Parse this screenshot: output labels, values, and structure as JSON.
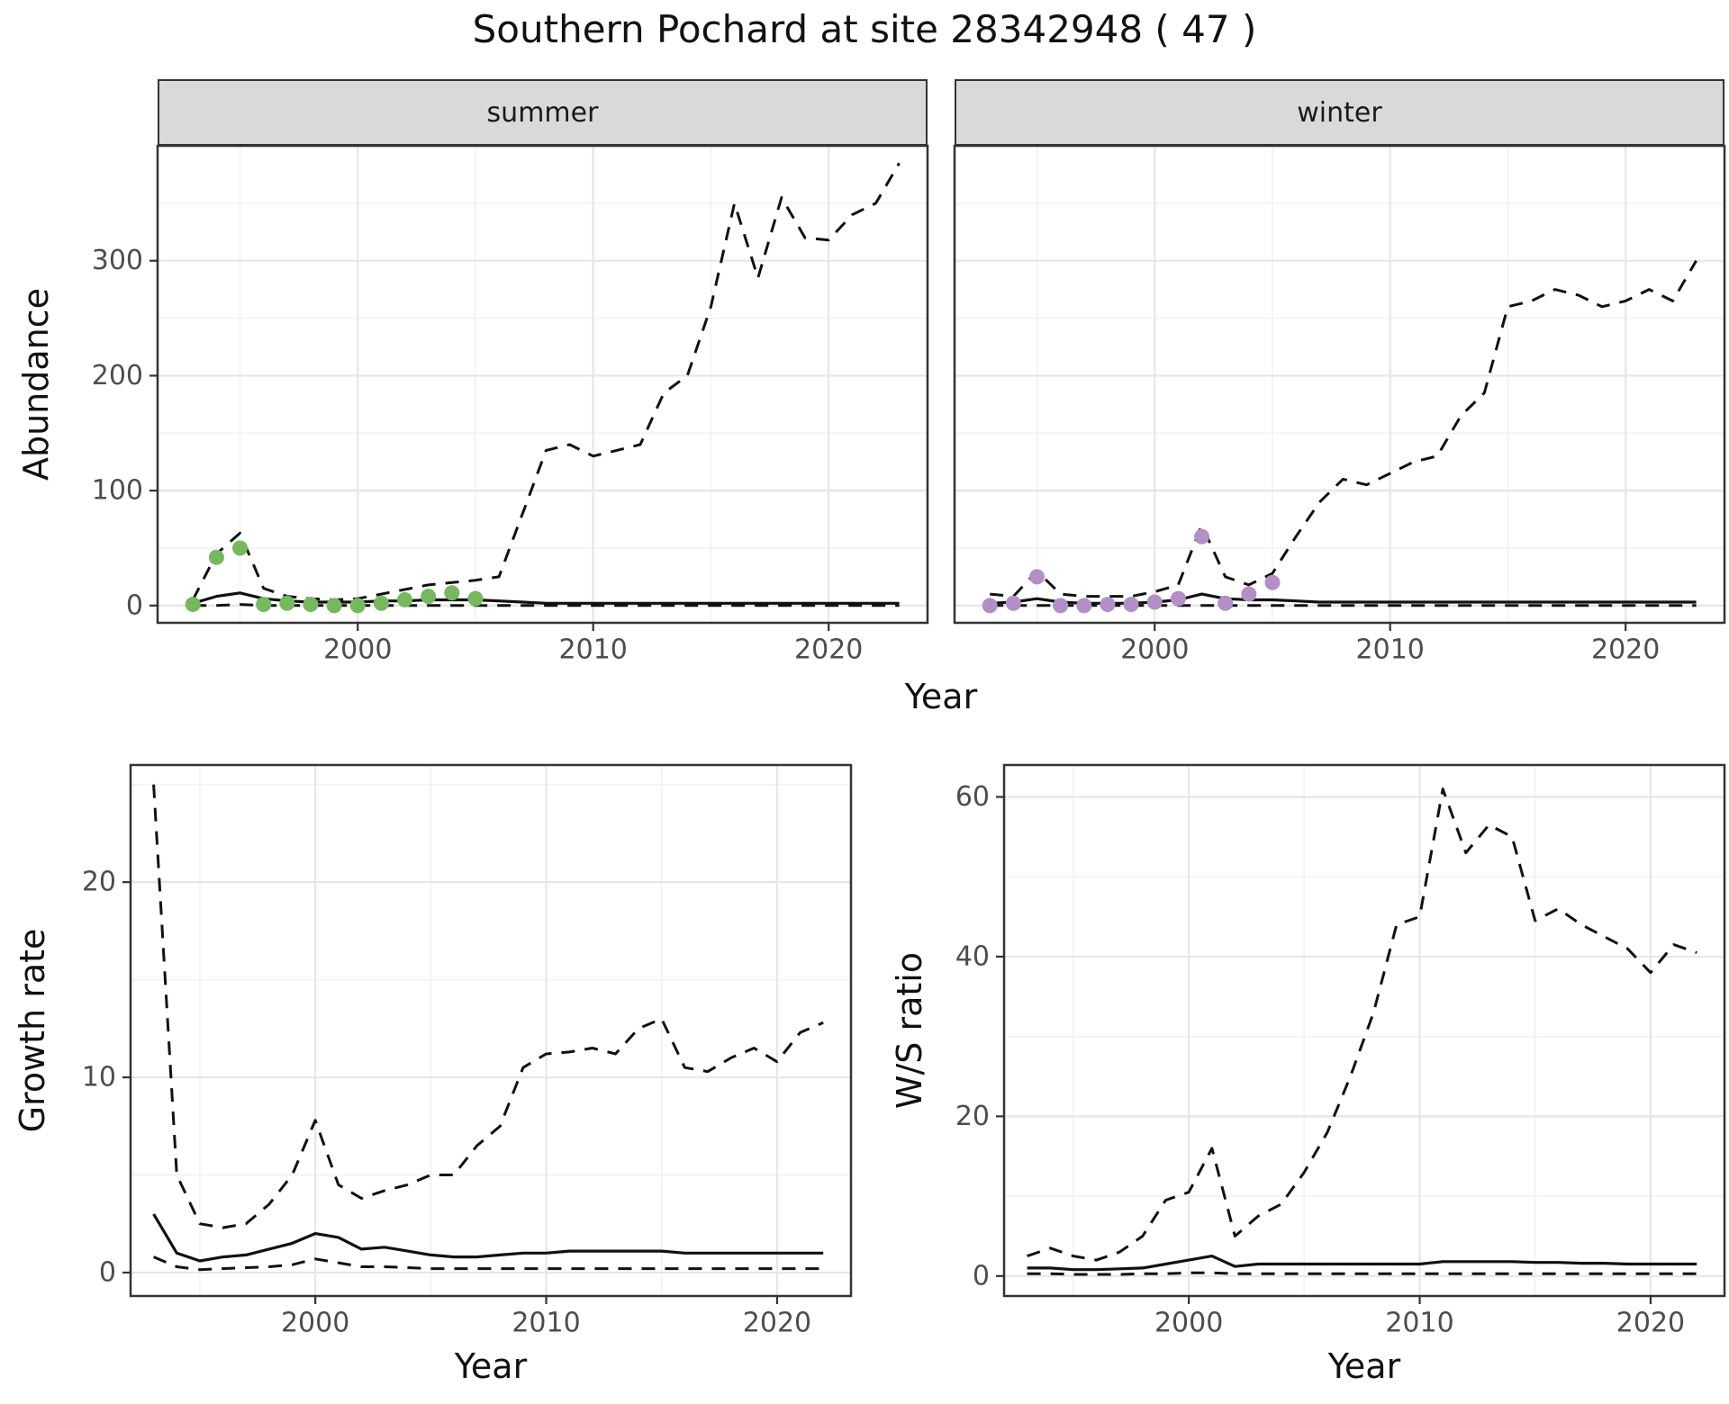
{
  "title": "Southern Pochard at site 28342948 ( 47 )",
  "colors": {
    "summer_points": "#76b85e",
    "winter_points": "#b28fc7",
    "line": "#111111",
    "grid_major": "#e6e6e6",
    "grid_minor": "#f2f2f2",
    "panel_border": "#333333",
    "strip_bg": "#d9d9d9",
    "axis_text": "#4d4d4d"
  },
  "chart_data": [
    {
      "id": "abundance-summer",
      "type": "line",
      "facet": "summer",
      "ylabel": "Abundance",
      "xlabel": "Year",
      "xlim": [
        1991.5,
        2024.2
      ],
      "ylim": [
        -15,
        400
      ],
      "xticks": [
        2000,
        2010,
        2020
      ],
      "yticks": [
        0,
        100,
        200,
        300
      ],
      "x": [
        1993,
        1994,
        1995,
        1996,
        1997,
        1998,
        1999,
        2000,
        2001,
        2002,
        2003,
        2004,
        2005,
        2006,
        2007,
        2008,
        2009,
        2010,
        2011,
        2012,
        2013,
        2014,
        2015,
        2016,
        2017,
        2018,
        2019,
        2020,
        2021,
        2022,
        2023
      ],
      "series": [
        {
          "name": "upper-ci",
          "style": "dashed",
          "values": [
            5,
            45,
            63,
            15,
            8,
            6,
            5,
            6,
            10,
            14,
            18,
            20,
            22,
            25,
            80,
            135,
            140,
            130,
            135,
            140,
            185,
            200,
            260,
            350,
            285,
            355,
            320,
            318,
            340,
            350,
            385
          ]
        },
        {
          "name": "median-fit",
          "style": "solid",
          "values": [
            2,
            8,
            11,
            6,
            4,
            3,
            3,
            3,
            4,
            4,
            5,
            5,
            5,
            4,
            3,
            2,
            2,
            2,
            2,
            2,
            2,
            2,
            2,
            2,
            2,
            2,
            2,
            2,
            2,
            2,
            2
          ]
        },
        {
          "name": "lower-ci",
          "style": "dashed",
          "values": [
            0,
            0,
            1,
            0,
            0,
            0,
            0,
            0,
            0,
            0,
            0,
            0,
            0,
            0,
            0,
            0,
            0,
            0,
            0,
            0,
            0,
            0,
            0,
            0,
            0,
            0,
            0,
            0,
            0,
            0,
            0
          ]
        },
        {
          "name": "observed-counts",
          "style": "points",
          "color": "#76b85e",
          "values": [
            1,
            42,
            50,
            1,
            2,
            1,
            0,
            0,
            2,
            5,
            8,
            11,
            6,
            null,
            null,
            null,
            null,
            null,
            null,
            null,
            null,
            null,
            null,
            null,
            null,
            null,
            null,
            null,
            null,
            null,
            null
          ]
        }
      ]
    },
    {
      "id": "abundance-winter",
      "type": "line",
      "facet": "winter",
      "ylabel": "Abundance",
      "xlabel": "Year",
      "xlim": [
        1991.5,
        2024.2
      ],
      "ylim": [
        -15,
        400
      ],
      "xticks": [
        2000,
        2010,
        2020
      ],
      "yticks": [
        0,
        100,
        200,
        300
      ],
      "x": [
        1993,
        1994,
        1995,
        1996,
        1997,
        1998,
        1999,
        2000,
        2001,
        2002,
        2003,
        2004,
        2005,
        2006,
        2007,
        2008,
        2009,
        2010,
        2011,
        2012,
        2013,
        2014,
        2015,
        2016,
        2017,
        2018,
        2019,
        2020,
        2021,
        2022,
        2023
      ],
      "series": [
        {
          "name": "upper-ci",
          "style": "dashed",
          "values": [
            10,
            8,
            30,
            10,
            8,
            8,
            8,
            12,
            18,
            70,
            25,
            18,
            28,
            60,
            90,
            110,
            105,
            115,
            125,
            130,
            165,
            185,
            260,
            265,
            275,
            270,
            260,
            265,
            275,
            265,
            300
          ]
        },
        {
          "name": "median-fit",
          "style": "solid",
          "values": [
            2,
            3,
            6,
            3,
            2,
            2,
            2,
            3,
            5,
            10,
            6,
            5,
            5,
            4,
            3,
            3,
            3,
            3,
            3,
            3,
            3,
            3,
            3,
            3,
            3,
            3,
            3,
            3,
            3,
            3,
            3
          ]
        },
        {
          "name": "lower-ci",
          "style": "dashed",
          "values": [
            0,
            0,
            0,
            0,
            0,
            0,
            0,
            0,
            0,
            0,
            0,
            0,
            0,
            0,
            0,
            0,
            0,
            0,
            0,
            0,
            0,
            0,
            0,
            0,
            0,
            0,
            0,
            0,
            0,
            0,
            0
          ]
        },
        {
          "name": "observed-counts",
          "style": "points",
          "color": "#b28fc7",
          "values": [
            0,
            2,
            25,
            0,
            0,
            1,
            1,
            3,
            6,
            60,
            2,
            10,
            20,
            null,
            null,
            null,
            null,
            null,
            null,
            null,
            null,
            null,
            null,
            null,
            null,
            null,
            null,
            null,
            null,
            null,
            null
          ]
        }
      ]
    },
    {
      "id": "growth-rate",
      "type": "line",
      "facet": null,
      "ylabel": "Growth rate",
      "xlabel": "Year",
      "xlim": [
        1992,
        2023.2
      ],
      "ylim": [
        -1.2,
        26
      ],
      "xticks": [
        2000,
        2010,
        2020
      ],
      "yticks": [
        0,
        10,
        20
      ],
      "x": [
        1993,
        1994,
        1995,
        1996,
        1997,
        1998,
        1999,
        2000,
        2001,
        2002,
        2003,
        2004,
        2005,
        2006,
        2007,
        2008,
        2009,
        2010,
        2011,
        2012,
        2013,
        2014,
        2015,
        2016,
        2017,
        2018,
        2019,
        2020,
        2021,
        2022
      ],
      "series": [
        {
          "name": "upper-ci",
          "style": "dashed",
          "values": [
            25,
            5,
            2.5,
            2.3,
            2.5,
            3.5,
            5,
            7.8,
            4.5,
            3.8,
            4.2,
            4.5,
            5,
            5,
            6.5,
            7.5,
            10.5,
            11.2,
            11.3,
            11.5,
            11.2,
            12.5,
            13,
            10.5,
            10.3,
            11,
            11.5,
            10.8,
            12.3,
            12.8
          ]
        },
        {
          "name": "median-fit",
          "style": "solid",
          "values": [
            3,
            1,
            0.6,
            0.8,
            0.9,
            1.2,
            1.5,
            2,
            1.8,
            1.2,
            1.3,
            1.1,
            0.9,
            0.8,
            0.8,
            0.9,
            1,
            1,
            1.1,
            1.1,
            1.1,
            1.1,
            1.1,
            1,
            1,
            1,
            1,
            1,
            1,
            1
          ]
        },
        {
          "name": "lower-ci",
          "style": "dashed",
          "values": [
            0.8,
            0.3,
            0.15,
            0.2,
            0.25,
            0.3,
            0.4,
            0.7,
            0.5,
            0.3,
            0.3,
            0.25,
            0.2,
            0.2,
            0.2,
            0.2,
            0.2,
            0.2,
            0.2,
            0.2,
            0.2,
            0.2,
            0.2,
            0.2,
            0.2,
            0.2,
            0.2,
            0.2,
            0.2,
            0.2
          ]
        }
      ]
    },
    {
      "id": "ws-ratio",
      "type": "line",
      "facet": null,
      "ylabel": "W/S ratio",
      "xlabel": "Year",
      "xlim": [
        1992,
        2023.2
      ],
      "ylim": [
        -2.5,
        64
      ],
      "xticks": [
        2000,
        2010,
        2020
      ],
      "yticks": [
        0,
        20,
        40,
        60
      ],
      "x": [
        1993,
        1994,
        1995,
        1996,
        1997,
        1998,
        1999,
        2000,
        2001,
        2002,
        2003,
        2004,
        2005,
        2006,
        2007,
        2008,
        2009,
        2010,
        2011,
        2012,
        2013,
        2014,
        2015,
        2016,
        2017,
        2018,
        2019,
        2020,
        2021,
        2022
      ],
      "series": [
        {
          "name": "upper-ci",
          "style": "dashed",
          "values": [
            2.5,
            3.5,
            2.5,
            2,
            3,
            5,
            9.5,
            10.5,
            16,
            5,
            7.5,
            9,
            13,
            18,
            25,
            33,
            44,
            45,
            61,
            53,
            56.5,
            55,
            44.5,
            46,
            44,
            42.5,
            41,
            38,
            41.5,
            40.5
          ]
        },
        {
          "name": "median-fit",
          "style": "solid",
          "values": [
            1,
            1,
            0.8,
            0.8,
            0.9,
            1,
            1.5,
            2,
            2.5,
            1.2,
            1.5,
            1.5,
            1.5,
            1.5,
            1.5,
            1.5,
            1.5,
            1.5,
            1.8,
            1.8,
            1.8,
            1.8,
            1.7,
            1.7,
            1.6,
            1.6,
            1.5,
            1.5,
            1.5,
            1.5
          ]
        },
        {
          "name": "lower-ci",
          "style": "dashed",
          "values": [
            0.3,
            0.3,
            0.2,
            0.2,
            0.2,
            0.3,
            0.3,
            0.4,
            0.4,
            0.3,
            0.3,
            0.3,
            0.3,
            0.3,
            0.3,
            0.3,
            0.3,
            0.3,
            0.3,
            0.3,
            0.3,
            0.3,
            0.3,
            0.3,
            0.3,
            0.3,
            0.3,
            0.3,
            0.3,
            0.3
          ]
        }
      ]
    }
  ]
}
